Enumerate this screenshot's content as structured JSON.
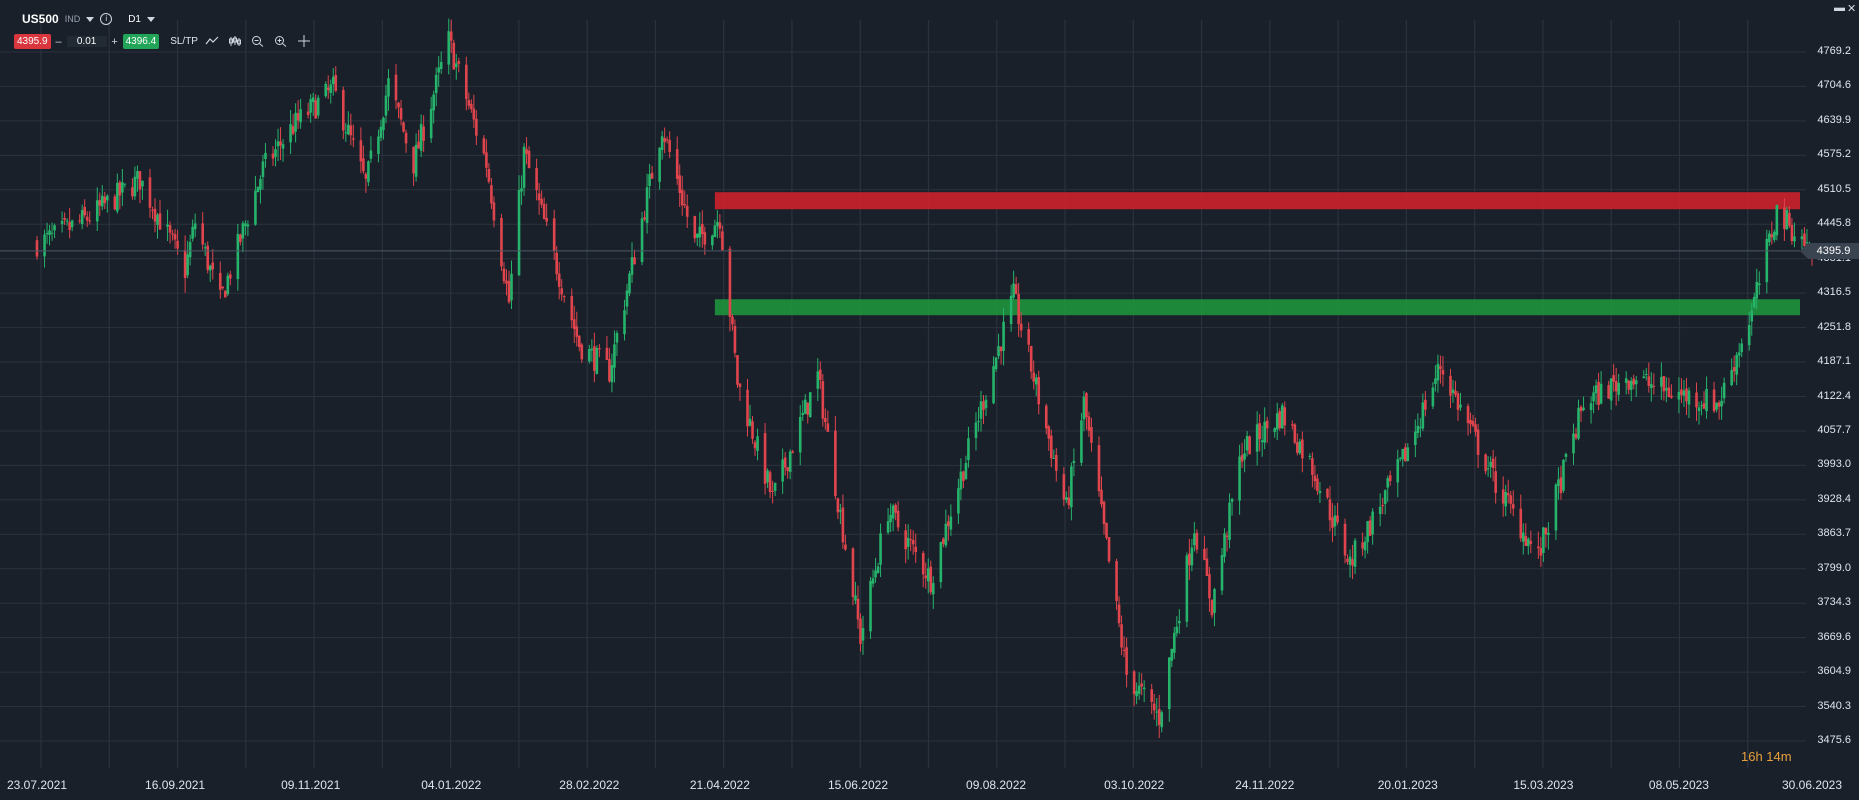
{
  "header": {
    "symbol": "US500",
    "type": "IND",
    "timeframe": "D1",
    "bid": "4395.9",
    "ask": "4396.4",
    "volume": "0.01",
    "minus": "–",
    "plus": "+",
    "sltp": "SL/TP"
  },
  "window": {
    "min": "▬",
    "close": "✕"
  },
  "current_price": "4395.9",
  "timer": "16h 14m",
  "colors": {
    "background": "#19202a",
    "grid": "#2a323d",
    "up": "#26b36b",
    "down": "#e0444c",
    "resistance": "#c8222b",
    "support": "#1f9a3d"
  },
  "chart_data": {
    "type": "candlestick",
    "symbol": "US500",
    "timeframe": "D1",
    "y_ticks": [
      "4769.2",
      "4704.6",
      "4639.9",
      "4575.2",
      "4510.5",
      "4445.8",
      "4381.1",
      "4316.5",
      "4251.8",
      "4187.1",
      "4122.4",
      "4057.7",
      "3993.0",
      "3928.4",
      "3863.7",
      "3799.0",
      "3734.3",
      "3669.6",
      "3604.9",
      "3540.3",
      "3475.6"
    ],
    "x_ticks": [
      "23.07.2021",
      "16.09.2021",
      "09.11.2021",
      "04.01.2022",
      "28.02.2022",
      "21.04.2022",
      "15.06.2022",
      "09.08.2022",
      "03.10.2022",
      "24.11.2022",
      "20.01.2023",
      "15.03.2023",
      "08.05.2023",
      "30.06.2023"
    ],
    "ylim": [
      3475.6,
      4800
    ],
    "zones": [
      {
        "name": "resistance",
        "from": 4474,
        "to": 4506,
        "start": "19.04.2022",
        "end": "30.06.2023"
      },
      {
        "name": "support",
        "from": 4275,
        "to": 4305,
        "start": "19.04.2022",
        "end": "30.06.2023"
      }
    ],
    "anchors": [
      {
        "date": "23.07.2021",
        "close": 4410
      },
      {
        "date": "29.07.2021",
        "close": 4420
      },
      {
        "date": "13.08.2021",
        "close": 4460
      },
      {
        "date": "02.09.2021",
        "close": 4530
      },
      {
        "date": "20.09.2021",
        "close": 4360
      },
      {
        "date": "24.09.2021",
        "close": 4450
      },
      {
        "date": "04.10.2021",
        "close": 4300
      },
      {
        "date": "21.10.2021",
        "close": 4550
      },
      {
        "date": "02.11.2021",
        "close": 4630
      },
      {
        "date": "18.11.2021",
        "close": 4700
      },
      {
        "date": "01.12.2021",
        "close": 4520
      },
      {
        "date": "10.12.2021",
        "close": 4710
      },
      {
        "date": "20.12.2021",
        "close": 4560
      },
      {
        "date": "03.01.2022",
        "close": 4790
      },
      {
        "date": "18.01.2022",
        "close": 4560
      },
      {
        "date": "27.01.2022",
        "close": 4300
      },
      {
        "date": "02.02.2022",
        "close": 4580
      },
      {
        "date": "24.02.2022",
        "close": 4220
      },
      {
        "date": "08.03.2022",
        "close": 4170
      },
      {
        "date": "29.03.2022",
        "close": 4630
      },
      {
        "date": "11.04.2022",
        "close": 4410
      },
      {
        "date": "21.04.2022",
        "close": 4460
      },
      {
        "date": "28.04.2022",
        "close": 4150
      },
      {
        "date": "12.05.2022",
        "close": 3930
      },
      {
        "date": "30.05.2022",
        "close": 4160
      },
      {
        "date": "16.06.2022",
        "close": 3670
      },
      {
        "date": "27.06.2022",
        "close": 3910
      },
      {
        "date": "14.07.2022",
        "close": 3780
      },
      {
        "date": "16.08.2022",
        "close": 4310
      },
      {
        "date": "06.09.2022",
        "close": 3910
      },
      {
        "date": "13.09.2022",
        "close": 4110
      },
      {
        "date": "30.09.2022",
        "close": 3600
      },
      {
        "date": "13.10.2022",
        "close": 3520
      },
      {
        "date": "27.10.2022",
        "close": 3880
      },
      {
        "date": "03.11.2022",
        "close": 3730
      },
      {
        "date": "15.11.2022",
        "close": 4020
      },
      {
        "date": "01.12.2022",
        "close": 4090
      },
      {
        "date": "13.12.2022",
        "close": 3990
      },
      {
        "date": "28.12.2022",
        "close": 3810
      },
      {
        "date": "17.01.2023",
        "close": 3990
      },
      {
        "date": "02.02.2023",
        "close": 4180
      },
      {
        "date": "24.02.2023",
        "close": 3960
      },
      {
        "date": "13.03.2023",
        "close": 3820
      },
      {
        "date": "31.03.2023",
        "close": 4110
      },
      {
        "date": "18.04.2023",
        "close": 4160
      },
      {
        "date": "05.05.2023",
        "close": 4130
      },
      {
        "date": "24.05.2023",
        "close": 4110
      },
      {
        "date": "06.06.2023",
        "close": 4280
      },
      {
        "date": "16.06.2023",
        "close": 4470
      },
      {
        "date": "30.06.2023",
        "close": 4396
      }
    ]
  }
}
